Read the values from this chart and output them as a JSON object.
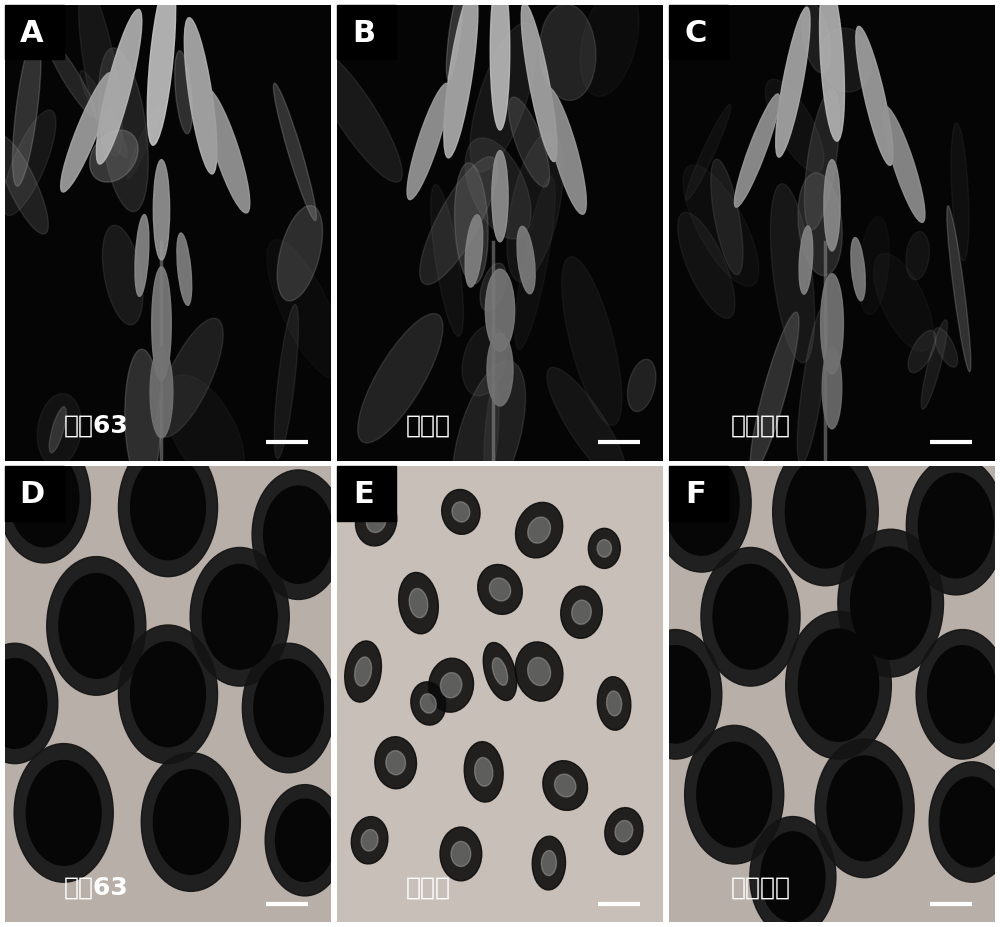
{
  "panels": [
    {
      "label": "A",
      "caption": "明恢63",
      "row": 0,
      "col": 0
    },
    {
      "label": "B",
      "caption": "突变体",
      "row": 0,
      "col": 1
    },
    {
      "label": "C",
      "caption": "互补植株",
      "row": 0,
      "col": 2
    },
    {
      "label": "D",
      "caption": "明恢63",
      "row": 1,
      "col": 0
    },
    {
      "label": "E",
      "caption": "突变体",
      "row": 1,
      "col": 1
    },
    {
      "label": "F",
      "caption": "互补植株",
      "row": 1,
      "col": 2
    }
  ],
  "label_fontsize": 22,
  "caption_fontsize": 18,
  "bg_top": "#050505",
  "bg_bottom_D": "#b8b0a8",
  "bg_bottom_E": "#c8c0b8",
  "bg_bottom_F": "#b8b0a8",
  "label_bg": "#000000",
  "label_color": "#ffffff",
  "caption_color": "#ffffff",
  "divider_color": "#ffffff",
  "divider_thickness": 4,
  "scalebar_color": "#ffffff"
}
